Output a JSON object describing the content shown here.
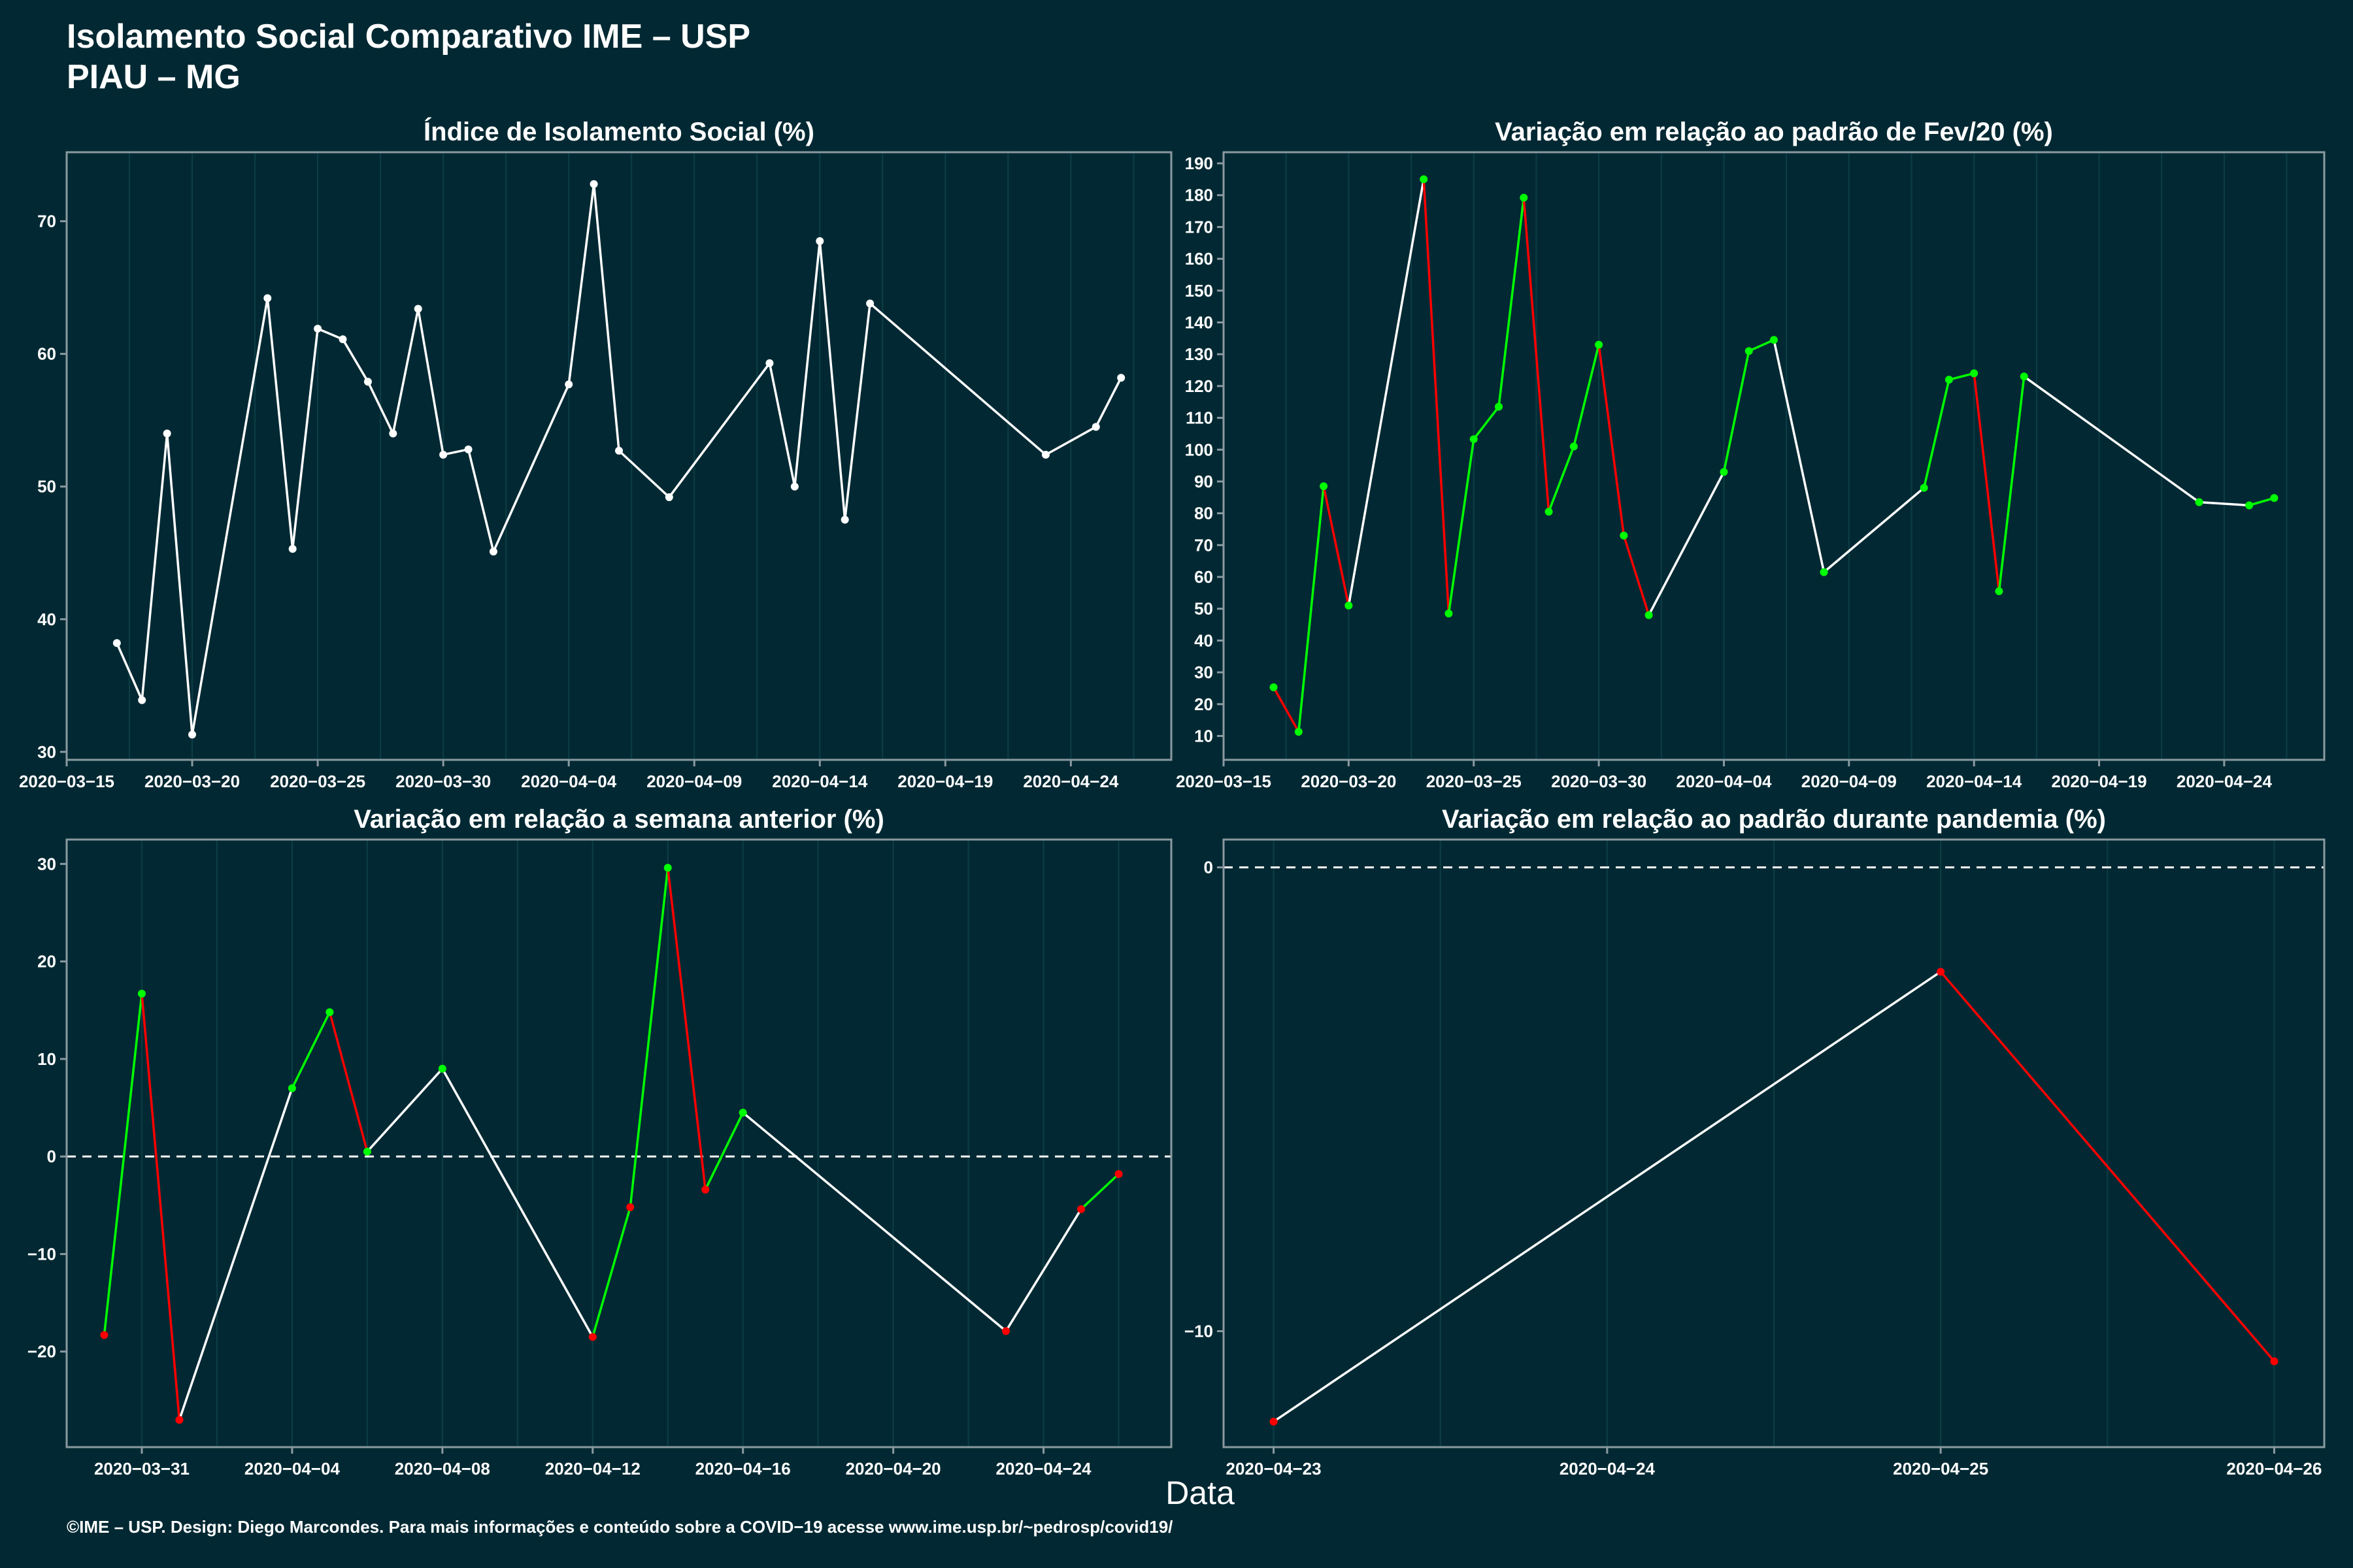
{
  "header": {
    "title": "Isolamento Social Comparativo IME – USP",
    "subtitle": "PIAU – MG"
  },
  "xlabel": "Data",
  "footer": "©IME – USP. Design: Diego Marcondes. Para mais informações e conteúdo sobre a COVID−19 acesse www.ime.usp.br/~pedrosp/covid19/",
  "colors": {
    "background": "#022933",
    "neutral": "#ffffff",
    "up": "#00ff00",
    "down": "#ff0000",
    "grid": "#0d3d46",
    "axis": "#8a9aa0"
  },
  "chart_data": [
    {
      "type": "line",
      "title": "Índice de Isolamento Social (%)",
      "x": [
        "2020-03-17",
        "2020-03-18",
        "2020-03-19",
        "2020-03-20",
        "2020-03-23",
        "2020-03-24",
        "2020-03-25",
        "2020-03-26",
        "2020-03-27",
        "2020-03-28",
        "2020-03-29",
        "2020-03-30",
        "2020-03-31",
        "2020-04-01",
        "2020-04-04",
        "2020-04-05",
        "2020-04-06",
        "2020-04-08",
        "2020-04-12",
        "2020-04-13",
        "2020-04-14",
        "2020-04-15",
        "2020-04-16",
        "2020-04-23",
        "2020-04-25",
        "2020-04-26"
      ],
      "values": [
        38.2,
        33.9,
        54.0,
        31.3,
        64.2,
        45.3,
        61.9,
        61.1,
        57.9,
        54.0,
        63.4,
        52.4,
        52.8,
        45.1,
        57.7,
        72.8,
        52.7,
        49.2,
        59.3,
        50.0,
        68.5,
        47.5,
        63.8,
        52.4,
        54.5,
        58.2
      ],
      "xlim": [
        "2020-03-15",
        "2020-04-28"
      ],
      "ylim": [
        29.4,
        75.2
      ],
      "xticks": [
        "2020−03−15",
        "2020−03−20",
        "2020−03−25",
        "2020−03−30",
        "2020−04−04",
        "2020−04−09",
        "2020−04−14",
        "2020−04−19",
        "2020−04−24"
      ],
      "yticks": [
        30,
        40,
        50,
        60,
        70
      ]
    },
    {
      "type": "line",
      "title": "Variação em relação ao padrão de Fev/20 (%)",
      "x": [
        "2020-03-17",
        "2020-03-18",
        "2020-03-19",
        "2020-03-20",
        "2020-03-23",
        "2020-03-24",
        "2020-03-25",
        "2020-03-26",
        "2020-03-27",
        "2020-03-28",
        "2020-03-29",
        "2020-03-30",
        "2020-03-31",
        "2020-04-01",
        "2020-04-04",
        "2020-04-05",
        "2020-04-06",
        "2020-04-08",
        "2020-04-12",
        "2020-04-13",
        "2020-04-14",
        "2020-04-15",
        "2020-04-16",
        "2020-04-23",
        "2020-04-25",
        "2020-04-26"
      ],
      "values": [
        25.3,
        11.3,
        88.5,
        51.0,
        185.0,
        48.5,
        103.3,
        113.5,
        179.2,
        80.5,
        101.0,
        133.0,
        73.0,
        48.0,
        93.0,
        131.0,
        134.5,
        61.5,
        88.0,
        122.0,
        124.0,
        55.5,
        123.0,
        83.5,
        82.5,
        84.8
      ],
      "xlim": [
        "2020-03-15",
        "2020-04-28"
      ],
      "ylim": [
        2.5,
        193.5
      ],
      "xticks": [
        "2020−03−15",
        "2020−03−20",
        "2020−03−25",
        "2020−03−30",
        "2020−04−04",
        "2020−04−09",
        "2020−04−14",
        "2020−04−19",
        "2020−04−24"
      ],
      "yticks": [
        10,
        20,
        30,
        40,
        50,
        60,
        70,
        80,
        90,
        100,
        110,
        120,
        130,
        140,
        150,
        160,
        170,
        180,
        190
      ]
    },
    {
      "type": "line",
      "title": "Variação em relação a semana anterior (%)",
      "x": [
        "2020-03-30",
        "2020-03-31",
        "2020-04-01",
        "2020-04-04",
        "2020-04-05",
        "2020-04-06",
        "2020-04-08",
        "2020-04-12",
        "2020-04-13",
        "2020-04-14",
        "2020-04-15",
        "2020-04-16",
        "2020-04-23",
        "2020-04-25",
        "2020-04-26"
      ],
      "values": [
        -18.3,
        16.7,
        -27.0,
        7.0,
        14.8,
        0.5,
        9.0,
        -18.5,
        -5.2,
        29.6,
        -3.4,
        4.5,
        -17.9,
        -5.4,
        -1.8
      ],
      "xlim": [
        "2020-03-29",
        "2020-04-27.4"
      ],
      "ylim": [
        -29.8,
        32.5
      ],
      "xticks": [
        "2020−03−31",
        "2020−04−04",
        "2020−04−08",
        "2020−04−12",
        "2020−04−16",
        "2020−04−20",
        "2020−04−24"
      ],
      "yticks": [
        -20,
        -10,
        0,
        10,
        20,
        30
      ],
      "reference_line": 0
    },
    {
      "type": "line",
      "title": "Variação em relação ao padrão durante pandemia (%)",
      "x": [
        "2020-04-23",
        "2020-04-25",
        "2020-04-26"
      ],
      "values": [
        -11.95,
        -2.25,
        -10.65
      ],
      "xlim": [
        "2020-04-22.85",
        "2020-04-26.15"
      ],
      "ylim": [
        -12.5,
        0.6
      ],
      "xticks": [
        "2020−04−23",
        "2020−04−24",
        "2020−04−25",
        "2020−04−26"
      ],
      "yticks": [
        -10,
        0
      ],
      "reference_line": 0
    }
  ]
}
